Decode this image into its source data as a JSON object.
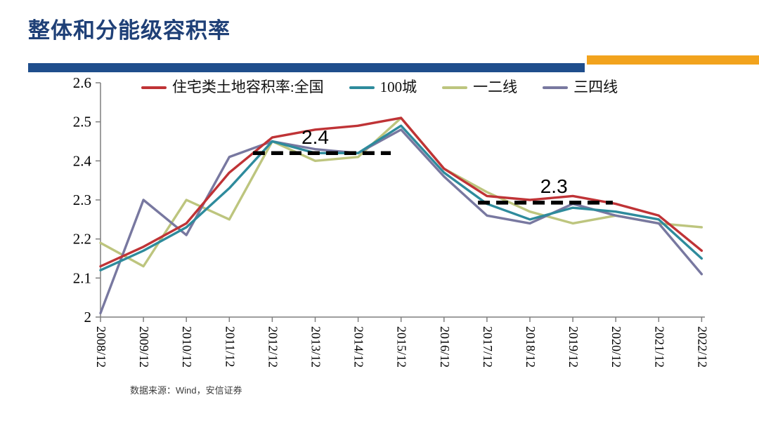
{
  "header": {
    "title": "整体和分能级容积率",
    "title_color": "#1f4077",
    "underline_blue": "#1f4e8c",
    "underline_orange": "#f2a31d"
  },
  "footer": {
    "source": "数据来源：Wind，安信证券"
  },
  "chart_data": {
    "type": "line",
    "title": "",
    "xlabel": "",
    "ylabel": "",
    "categories": [
      "2008/12",
      "2009/12",
      "2010/12",
      "2011/12",
      "2012/12",
      "2013/12",
      "2014/12",
      "2015/12",
      "2016/12",
      "2017/12",
      "2018/12",
      "2019/12",
      "2020/12",
      "2021/12",
      "2022/12"
    ],
    "series": [
      {
        "name": "住宅类土地容积率:全国",
        "color": "#bf3336",
        "values": [
          2.13,
          2.18,
          2.24,
          2.37,
          2.46,
          2.48,
          2.49,
          2.51,
          2.38,
          2.31,
          2.3,
          2.31,
          2.29,
          2.26,
          2.17
        ]
      },
      {
        "name": "100城",
        "color": "#2e8b9c",
        "values": [
          2.12,
          2.17,
          2.23,
          2.33,
          2.45,
          2.42,
          2.42,
          2.49,
          2.37,
          2.29,
          2.25,
          2.28,
          2.27,
          2.25,
          2.15
        ]
      },
      {
        "name": "一二线",
        "color": "#bdc57e",
        "values": [
          2.19,
          2.13,
          2.3,
          2.25,
          2.45,
          2.4,
          2.41,
          2.51,
          2.38,
          2.32,
          2.27,
          2.24,
          2.26,
          2.24,
          2.23
        ]
      },
      {
        "name": "三四线",
        "color": "#7878a0",
        "values": [
          2.01,
          2.3,
          2.21,
          2.41,
          2.45,
          2.43,
          2.42,
          2.48,
          2.36,
          2.26,
          2.24,
          2.29,
          2.26,
          2.24,
          2.11
        ]
      }
    ],
    "draw_order": [
      2,
      3,
      1,
      0
    ],
    "ylim": [
      2.0,
      2.6
    ],
    "ytick_step": 0.1,
    "ytick_labels": [
      "2",
      "2.1",
      "2.2",
      "2.3",
      "2.4",
      "2.5",
      "2.6"
    ],
    "grid": false,
    "legend_position": "top",
    "annotations": [
      {
        "label": "2.4",
        "line_y": 2.42,
        "x_from": 3.55,
        "x_to": 6.76,
        "label_x": 5.0,
        "label_y": 2.444
      },
      {
        "label": "2.3",
        "line_y": 2.293,
        "x_from": 8.79,
        "x_to": 11.93,
        "label_x": 10.56,
        "label_y": 2.318
      }
    ]
  }
}
